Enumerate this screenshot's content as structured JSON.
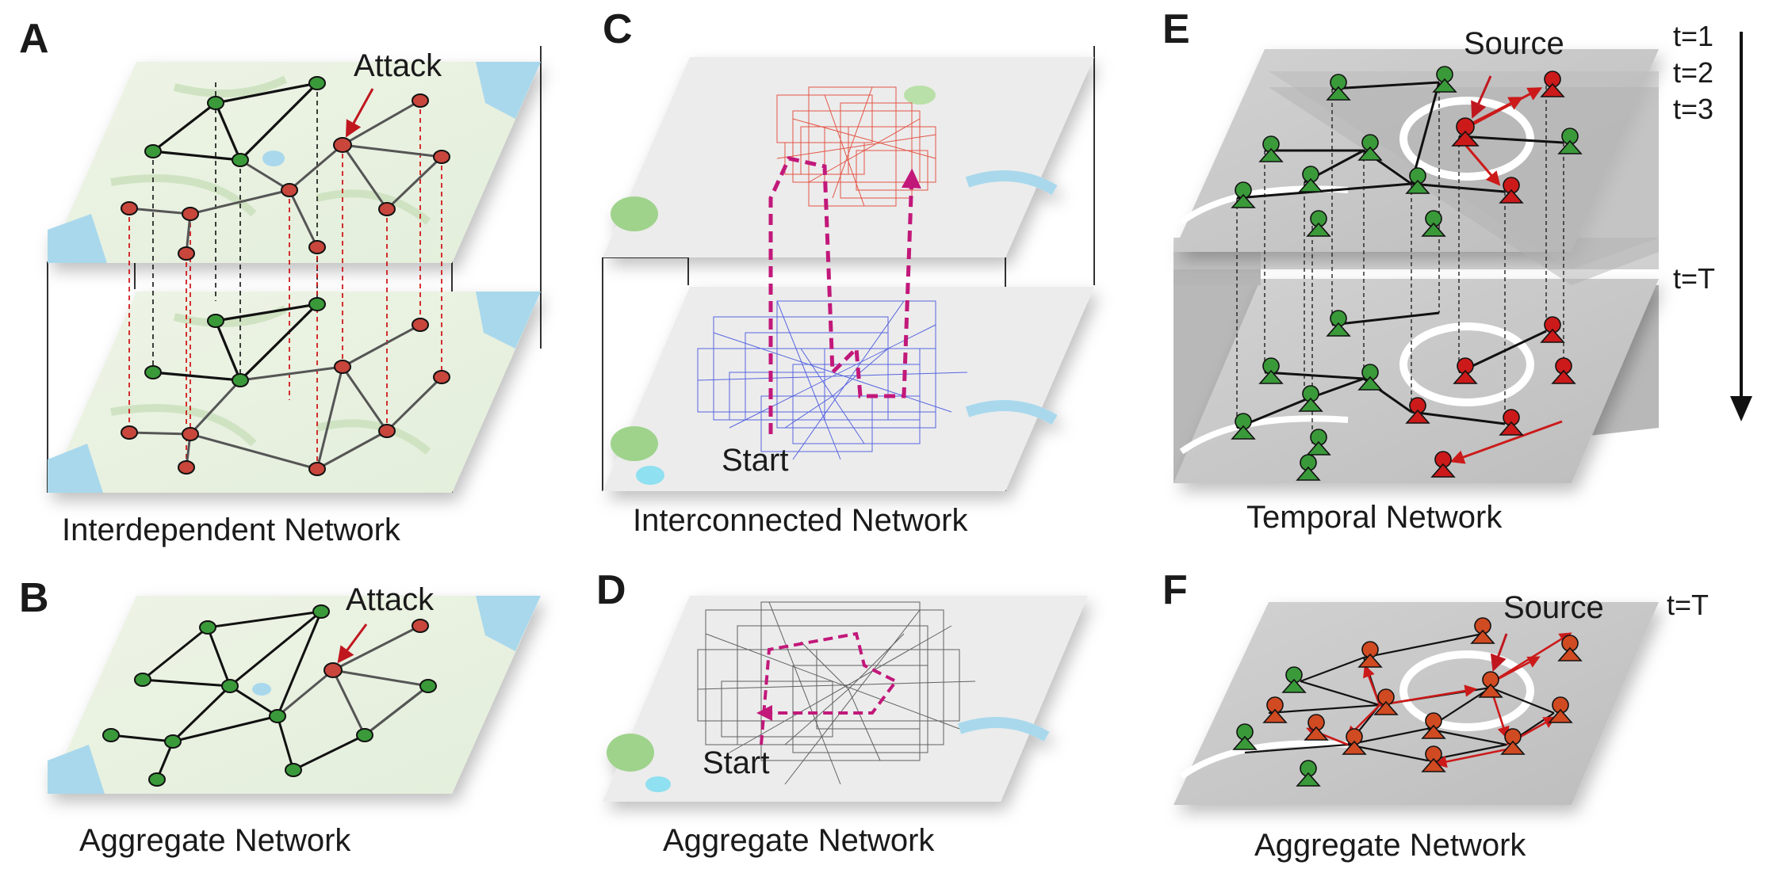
{
  "panels": {
    "A": {
      "letter": "A",
      "caption": "Interdependent Network",
      "annotation": "Attack"
    },
    "B": {
      "letter": "B",
      "caption": "Aggregate Network",
      "annotation": "Attack"
    },
    "C": {
      "letter": "C",
      "caption": "Interconnected Network",
      "annotation": "Start"
    },
    "D": {
      "letter": "D",
      "caption": "Aggregate Network",
      "annotation": "Start"
    },
    "E": {
      "letter": "E",
      "caption": "Temporal Network",
      "annotation": "Source",
      "time_labels": [
        "t=1",
        "t=2",
        "t=3",
        "t=T"
      ]
    },
    "F": {
      "letter": "F",
      "caption": "Aggregate Network",
      "annotation": "Source",
      "time_label": "t=T"
    }
  },
  "colors": {
    "failed_node": "#c8463c",
    "healthy_node": "#3a9a3a",
    "infected_node": "#cc1a1a",
    "route_blue": "#3344dd",
    "route_red": "#e23a2a",
    "transfer_path": "#c2187a",
    "map_land": "#eaf2e2",
    "map_water": "#a9d8ec",
    "temporal_plane": "#c9c9c9",
    "attack_arrow": "#c0171f"
  }
}
